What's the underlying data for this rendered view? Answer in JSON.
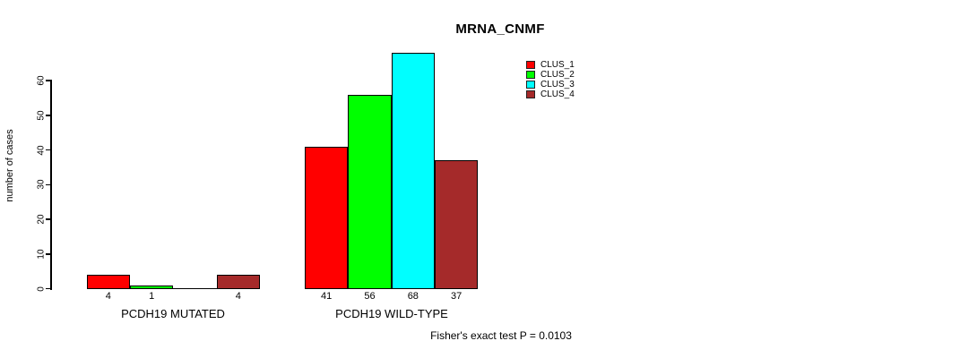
{
  "chart_data": {
    "type": "bar",
    "title": "MRNA_CNMF",
    "ylabel": "number of cases",
    "xlabel": "",
    "ylim": [
      0,
      60
    ],
    "yticks": [
      0,
      10,
      20,
      30,
      40,
      50,
      60
    ],
    "grid": false,
    "legend_position": "top-right-inside",
    "categories": [
      "PCDH19 MUTATED",
      "PCDH19 WILD-TYPE"
    ],
    "series": [
      {
        "name": "CLUS_1",
        "color": "#ff0000",
        "values": [
          4,
          41
        ]
      },
      {
        "name": "CLUS_2",
        "color": "#00ff00",
        "values": [
          1,
          56
        ]
      },
      {
        "name": "CLUS_3",
        "color": "#00ffff",
        "values": [
          0,
          68
        ]
      },
      {
        "name": "CLUS_4",
        "color": "#a52a2a",
        "values": [
          4,
          37
        ]
      }
    ],
    "bar_value_labels": [
      [
        "4",
        "1",
        "",
        "4"
      ],
      [
        "41",
        "56",
        "68",
        "37"
      ]
    ],
    "annotation": "Fisher's exact test P = 0.0103"
  }
}
